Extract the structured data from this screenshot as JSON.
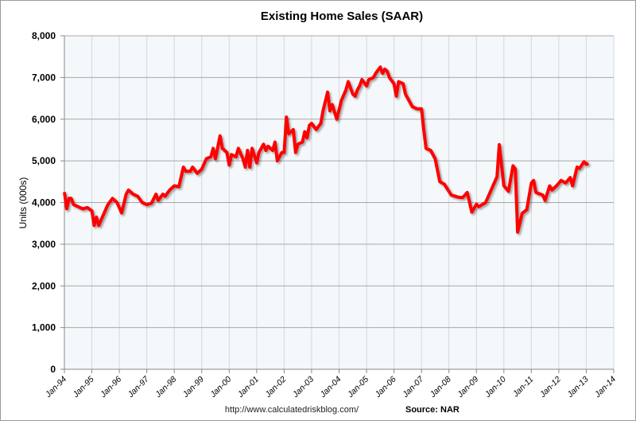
{
  "chart_data": {
    "type": "line",
    "title": "Existing Home Sales (SAAR)",
    "ylabel": "Units (000s)",
    "xlabel": "",
    "ylim": [
      0,
      8000
    ],
    "xlim": [
      "1994-01",
      "2014-01"
    ],
    "grid": true,
    "legend": "none",
    "y_ticks": [
      "0",
      "1,000",
      "2,000",
      "3,000",
      "4,000",
      "5,000",
      "6,000",
      "7,000",
      "8,000"
    ],
    "x_ticks": [
      "Jan-94",
      "Jan-95",
      "Jan-96",
      "Jan-97",
      "Jan-98",
      "Jan-99",
      "Jan-00",
      "Jan-01",
      "Jan-02",
      "Jan-03",
      "Jan-04",
      "Jan-05",
      "Jan-06",
      "Jan-07",
      "Jan-08",
      "Jan-09",
      "Jan-10",
      "Jan-11",
      "Jan-12",
      "Jan-13",
      "Jan-14"
    ],
    "series_color": "#ff0000",
    "series": [
      {
        "x": [
          "1994-01",
          "1994-02",
          "1994-03",
          "1994-04",
          "1994-05",
          "1994-07",
          "1994-09",
          "1994-11",
          "1995-01",
          "1995-02",
          "1995-03",
          "1995-04",
          "1995-06",
          "1995-08",
          "1995-10",
          "1995-12",
          "1996-02",
          "1996-04",
          "1996-05",
          "1996-07",
          "1996-09",
          "1996-11",
          "1997-01",
          "1997-03",
          "1997-05",
          "1997-06",
          "1997-08",
          "1997-09",
          "1997-11",
          "1998-01",
          "1998-03",
          "1998-05",
          "1998-06",
          "1998-08",
          "1998-09",
          "1998-11",
          "1999-01",
          "1999-03",
          "1999-05",
          "1999-06",
          "1999-07",
          "1999-09",
          "1999-10",
          "1999-12",
          "2000-01",
          "2000-02",
          "2000-04",
          "2000-05",
          "2000-07",
          "2000-08",
          "2000-09",
          "2000-10",
          "2000-11",
          "2001-01",
          "2001-02",
          "2001-04",
          "2001-05",
          "2001-06",
          "2001-08",
          "2001-09",
          "2001-10",
          "2001-12",
          "2002-01",
          "2002-02",
          "2002-03",
          "2002-05",
          "2002-06",
          "2002-07",
          "2002-09",
          "2002-10",
          "2002-11",
          "2002-12",
          "2003-01",
          "2003-03",
          "2003-05",
          "2003-06",
          "2003-08",
          "2003-09",
          "2003-10",
          "2003-12",
          "2004-02",
          "2004-04",
          "2004-05",
          "2004-07",
          "2004-08",
          "2004-09",
          "2004-10",
          "2004-11",
          "2005-01",
          "2005-02",
          "2005-04",
          "2005-05",
          "2005-07",
          "2005-08",
          "2005-09",
          "2005-10",
          "2005-11",
          "2006-01",
          "2006-02",
          "2006-03",
          "2006-05",
          "2006-06",
          "2006-07",
          "2006-09",
          "2006-11",
          "2007-01",
          "2007-02",
          "2007-03",
          "2007-05",
          "2007-07",
          "2007-09",
          "2007-11",
          "2008-02",
          "2008-05",
          "2008-07",
          "2008-09",
          "2008-11",
          "2009-01",
          "2009-02",
          "2009-05",
          "2009-08",
          "2009-10",
          "2009-11",
          "2010-01",
          "2010-03",
          "2010-05",
          "2010-06",
          "2010-07",
          "2010-09",
          "2010-11",
          "2011-01",
          "2011-02",
          "2011-03",
          "2011-06",
          "2011-07",
          "2011-09",
          "2011-10",
          "2011-12",
          "2012-02",
          "2012-04",
          "2012-06",
          "2012-07",
          "2012-09",
          "2012-10",
          "2012-12",
          "2013-01",
          "2013-02"
        ],
        "y": [
          4250,
          3850,
          4100,
          4100,
          3950,
          3900,
          3850,
          3880,
          3800,
          3450,
          3650,
          3450,
          3700,
          3950,
          4100,
          4000,
          3750,
          4200,
          4300,
          4200,
          4150,
          4000,
          3950,
          3980,
          4200,
          4050,
          4200,
          4150,
          4300,
          4400,
          4380,
          4850,
          4750,
          4750,
          4850,
          4700,
          4800,
          5050,
          5100,
          5300,
          5050,
          5600,
          5300,
          5200,
          4900,
          5150,
          5100,
          5300,
          5050,
          4850,
          5250,
          4850,
          5300,
          4950,
          5200,
          5400,
          5250,
          5350,
          5250,
          5450,
          5000,
          5200,
          5200,
          6050,
          5650,
          5750,
          5200,
          5400,
          5450,
          5700,
          5550,
          5850,
          5900,
          5750,
          5900,
          6200,
          6650,
          6200,
          6350,
          6000,
          6450,
          6700,
          6900,
          6600,
          6550,
          6700,
          6800,
          6950,
          6800,
          6950,
          7000,
          7100,
          7250,
          7100,
          7200,
          7150,
          7000,
          6850,
          6550,
          6900,
          6850,
          6600,
          6500,
          6300,
          6250,
          6250,
          5750,
          5300,
          5250,
          5050,
          4500,
          4440,
          4180,
          4130,
          4120,
          4240,
          3770,
          3960,
          3900,
          4000,
          4370,
          4620,
          5390,
          4400,
          4270,
          4880,
          4800,
          3290,
          3740,
          3830,
          4470,
          4530,
          4240,
          4180,
          4050,
          4400,
          4300,
          4400,
          4530,
          4470,
          4600,
          4400,
          4850,
          4820,
          4980,
          4920,
          4940
        ]
      }
    ]
  },
  "footer": {
    "url": "http://www.calculatedriskblog.com/",
    "source": "Source: NAR"
  }
}
